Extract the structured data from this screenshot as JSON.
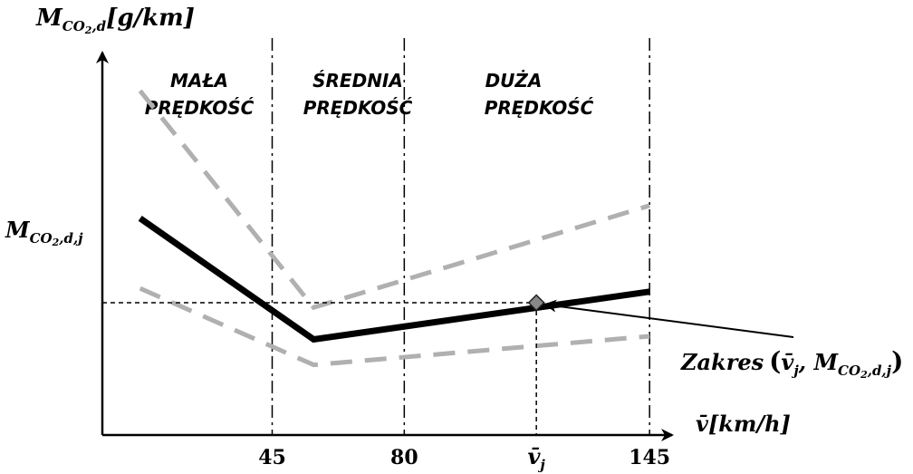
{
  "chart_data": {
    "type": "line",
    "ylabel": {
      "main": "M",
      "sub": "CO",
      "sub2": "2",
      "subrest": ",d",
      "unit": "[g/km]"
    },
    "xlabel": {
      "main": "v̄",
      "unit": "[km/h]"
    },
    "y_marker_label": {
      "main": "M",
      "sub": "CO",
      "sub2": "2",
      "subrest": ",d,j"
    },
    "x_ticks": [
      {
        "label": "45",
        "value": 45
      },
      {
        "label": "80",
        "value": 80
      },
      {
        "label": "145",
        "value": 145
      }
    ],
    "vj_tick": {
      "main": "v̄",
      "sub": "j",
      "value": 115
    },
    "bands": [
      {
        "line1": "MAŁA",
        "line2": "PRĘDKOŚĆ"
      },
      {
        "line1": "ŚREDNIA",
        "line2": "PRĘDKOŚĆ"
      },
      {
        "line1": "DUŻA",
        "line2": "PRĘDKOŚĆ"
      }
    ],
    "annotation": {
      "prefix": "Zakres",
      "open": "(",
      "v": "v̄",
      "vsub": "j",
      "comma": ", M",
      "sub": "CO",
      "sub2": "2",
      "subrest": ",d,j",
      "close": ")"
    },
    "series": [
      {
        "style": "solid-black",
        "x": [
          10,
          56,
          145
        ],
        "y": [
          6.8,
          3.0,
          4.5
        ]
      },
      {
        "style": "dashed-gray-upper",
        "x": [
          10,
          56,
          145
        ],
        "y": [
          10.8,
          4.0,
          7.2
        ]
      },
      {
        "style": "dashed-gray-lower",
        "x": [
          10,
          56,
          145
        ],
        "y": [
          4.6,
          2.2,
          3.1
        ]
      }
    ],
    "point": {
      "x": 115,
      "y": 4.15
    },
    "xlim": [
      0,
      150
    ],
    "ylim": [
      0,
      12
    ]
  }
}
